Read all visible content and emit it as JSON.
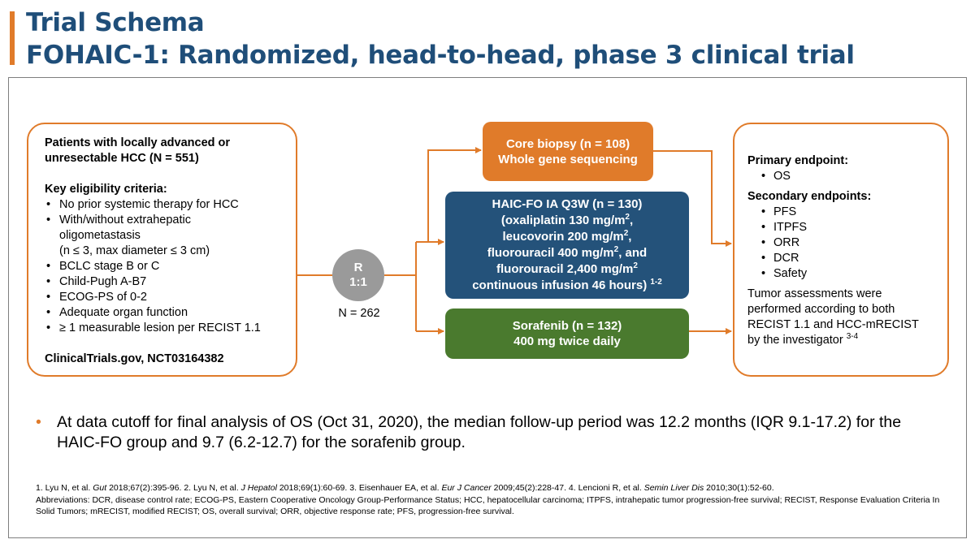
{
  "header": {
    "title_line1": "Trial Schema",
    "title_line2": "FOHAIC-1: Randomized, head-to-head, phase 3 clinical trial"
  },
  "colors": {
    "accent": "#e07b2a",
    "title": "#1f4e79",
    "haic_arm": "#24527a",
    "sorafenib_arm": "#4a7a2e",
    "randomization": "#9a9a9a"
  },
  "patients": {
    "heading_line1": "Patients with locally advanced or",
    "heading_line2": "unresectable HCC (N = 551)",
    "criteria_heading": "Key eligibility criteria:",
    "criteria": [
      "No prior systemic therapy for HCC",
      "With/without extrahepatic",
      "BCLC stage B or C",
      "Child-Pugh A-B7",
      "ECOG-PS of 0-2",
      "Adequate organ function",
      "≥ 1 measurable lesion per RECIST 1.1"
    ],
    "criteria_cont1": "oligometastasis",
    "criteria_cont2": "(n ≤ 3, max diameter ≤ 3 cm)",
    "registry": "ClinicalTrials.gov, NCT03164382"
  },
  "randomization": {
    "label_line1": "R",
    "label_line2": "1:1",
    "n": "N = 262"
  },
  "arms": {
    "biopsy": {
      "line1": "Core biopsy (n = 108)",
      "line2": "Whole gene sequencing"
    },
    "haic": {
      "line1": "HAIC-FO IA Q3W (n = 130)",
      "line2": "(oxaliplatin 130 mg/m",
      "line3": "leucovorin 200 mg/m",
      "line4": "fluorouracil 400 mg/m",
      "line4_tail": ", and",
      "line5": "fluorouracil 2,400 mg/m",
      "line6": "continuous infusion 46 hours)",
      "sup_unit": "2",
      "ref": "1-2"
    },
    "sorafenib": {
      "line1": "Sorafenib (n = 132)",
      "line2": "400 mg twice daily"
    }
  },
  "endpoints": {
    "primary_heading": "Primary endpoint:",
    "primary": [
      "OS"
    ],
    "secondary_heading": "Secondary endpoints:",
    "secondary": [
      "PFS",
      "ITPFS",
      "ORR",
      "DCR",
      "Safety"
    ],
    "assessment_line1": "Tumor assessments were",
    "assessment_line2": "performed according to both",
    "assessment_line3": "RECIST 1.1 and HCC-mRECIST",
    "assessment_line4": "by the investigator",
    "assessment_ref": "3-4"
  },
  "bullet": "At data cutoff for final analysis of OS (Oct 31, 2020), the median follow-up period was 12.2 months (IQR 9.1-17.2) for the HAIC-FO group and 9.7 (6.2-12.7) for the sorafenib group.",
  "footnote": {
    "refs": [
      {
        "num": "1. Lyu N, et al. ",
        "journal": "Gut",
        "rest": " 2018;67(2):395-96. "
      },
      {
        "num": "2. Lyu N, et al. ",
        "journal": "J Hepatol",
        "rest": " 2018;69(1):60-69. "
      },
      {
        "num": "3. Eisenhauer EA, et al. ",
        "journal": "Eur J Cancer",
        "rest": " 2009;45(2):228-47. "
      },
      {
        "num": "4. Lencioni R, et al. ",
        "journal": "Semin Liver Dis",
        "rest": " 2010;30(1):52-60."
      }
    ],
    "abbreviations": "Abbreviations: DCR, disease control rate; ECOG-PS, Eastern Cooperative Oncology Group-Performance Status; HCC, hepatocellular carcinoma; ITPFS, intrahepatic tumor progression-free survival; RECIST, Response Evaluation Criteria In Solid Tumors; mRECIST, modified RECIST; OS, overall survival; ORR, objective response rate; PFS, progression-free survival."
  }
}
